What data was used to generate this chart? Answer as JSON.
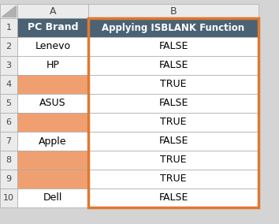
{
  "col_header_row": [
    "A",
    "B"
  ],
  "row_numbers": [
    "1",
    "2",
    "3",
    "4",
    "5",
    "6",
    "7",
    "8",
    "9",
    "10"
  ],
  "col_a_values": [
    "PC Brand",
    "Lenevo",
    "HP",
    "",
    "ASUS",
    "",
    "Apple",
    "",
    "",
    "Dell"
  ],
  "col_b_values": [
    "Applying ISBLANK Function",
    "FALSE",
    "FALSE",
    "TRUE",
    "FALSE",
    "TRUE",
    "FALSE",
    "TRUE",
    "TRUE",
    "FALSE"
  ],
  "header_bg": "#4a6274",
  "header_text_color": "#ffffff",
  "orange_bg": "#f0a070",
  "white_bg": "#ffffff",
  "cell_text_color": "#000000",
  "grid_color": "#555555",
  "col_b_border_color": "#e07830",
  "blank_rows_a": [
    3,
    5,
    7,
    8
  ],
  "sheet_bg": "#d4d4d4",
  "col_header_bg": "#ebebeb"
}
